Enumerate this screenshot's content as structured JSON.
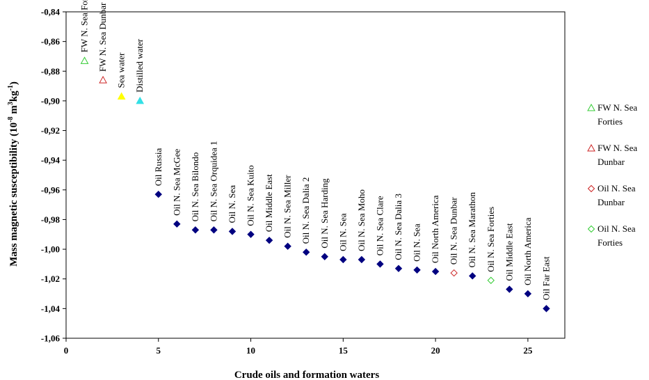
{
  "chart_data": {
    "type": "scatter",
    "title": "",
    "xlabel": "Crude oils and formation waters",
    "ylabel": "Mass magnetic susceptibility",
    "ylabel_unit": "(10",
    "ylabel_unit_sup1": "-8",
    "ylabel_unit_mid": " m",
    "ylabel_unit_sup2": "3",
    "ylabel_unit_mid2": "kg",
    "ylabel_unit_sup3": "-1",
    "ylabel_unit_end": ")",
    "xlim": [
      0,
      27
    ],
    "ylim": [
      -1.06,
      -0.84
    ],
    "x_ticks": [
      0,
      5,
      10,
      15,
      20,
      25
    ],
    "y_ticks": [
      -0.84,
      -0.86,
      -0.88,
      -0.9,
      -0.92,
      -0.94,
      -0.96,
      -0.98,
      -1.0,
      -1.02,
      -1.04,
      -1.06
    ],
    "y_tick_labels": [
      "-0,84",
      "-0,86",
      "-0,88",
      "-0,90",
      "-0,92",
      "-0,94",
      "-0,96",
      "-0,98",
      "-1,00",
      "-1,02",
      "-1,04",
      "-1,06"
    ],
    "grid": false,
    "legend_position": "right",
    "points": [
      {
        "x": 1,
        "y": -0.873,
        "label": "FW N. Sea Forties",
        "marker": "triangle-open",
        "color": "#33cc33"
      },
      {
        "x": 2,
        "y": -0.886,
        "label": "FW N. Sea Dunbar",
        "marker": "triangle-open",
        "color": "#cc2222"
      },
      {
        "x": 3,
        "y": -0.897,
        "label": "Sea water",
        "marker": "triangle",
        "color": "#ffff00"
      },
      {
        "x": 4,
        "y": -0.9,
        "label": "Distilled water",
        "marker": "triangle",
        "color": "#33e0e6"
      },
      {
        "x": 5,
        "y": -0.963,
        "label": "Oil Russia",
        "marker": "diamond",
        "color": "#000080"
      },
      {
        "x": 6,
        "y": -0.983,
        "label": "Oil N. Sea McGee",
        "marker": "diamond",
        "color": "#000080"
      },
      {
        "x": 7,
        "y": -0.987,
        "label": "Oil N. Sea Bilondo",
        "marker": "diamond",
        "color": "#000080"
      },
      {
        "x": 8,
        "y": -0.987,
        "label": "Oil N. Sea Orquidea 1",
        "marker": "diamond",
        "color": "#000080"
      },
      {
        "x": 9,
        "y": -0.988,
        "label": "Oil N. Sea",
        "marker": "diamond",
        "color": "#000080"
      },
      {
        "x": 10,
        "y": -0.99,
        "label": "Oil N. Sea Kuito",
        "marker": "diamond",
        "color": "#000080"
      },
      {
        "x": 11,
        "y": -0.994,
        "label": "Oil Middle East",
        "marker": "diamond",
        "color": "#000080"
      },
      {
        "x": 12,
        "y": -0.998,
        "label": "Oil N. Sea Miller",
        "marker": "diamond",
        "color": "#000080"
      },
      {
        "x": 13,
        "y": -1.002,
        "label": "Oil N. Sea Dalia 2",
        "marker": "diamond",
        "color": "#000080"
      },
      {
        "x": 14,
        "y": -1.005,
        "label": "Oil N. Sea Harding",
        "marker": "diamond",
        "color": "#000080"
      },
      {
        "x": 15,
        "y": -1.007,
        "label": "Oil N. Sea",
        "marker": "diamond",
        "color": "#000080"
      },
      {
        "x": 16,
        "y": -1.007,
        "label": "Oil N. Sea Moho",
        "marker": "diamond",
        "color": "#000080"
      },
      {
        "x": 17,
        "y": -1.01,
        "label": "Oil N. Sea Clare",
        "marker": "diamond",
        "color": "#000080"
      },
      {
        "x": 18,
        "y": -1.013,
        "label": "Oil N. Sea Dalia 3",
        "marker": "diamond",
        "color": "#000080"
      },
      {
        "x": 19,
        "y": -1.014,
        "label": "Oil N. Sea",
        "marker": "diamond",
        "color": "#000080"
      },
      {
        "x": 20,
        "y": -1.015,
        "label": "Oil North America",
        "marker": "diamond",
        "color": "#000080"
      },
      {
        "x": 21,
        "y": -1.016,
        "label": "Oil N. Sea Dunbar",
        "marker": "diamond-open",
        "color": "#cc2222"
      },
      {
        "x": 22,
        "y": -1.018,
        "label": "Oil N. Sea Marathon",
        "marker": "diamond",
        "color": "#000080"
      },
      {
        "x": 23,
        "y": -1.021,
        "label": "Oil N. Sea Forties",
        "marker": "diamond-open",
        "color": "#33cc33"
      },
      {
        "x": 24,
        "y": -1.027,
        "label": "Oil Middle East",
        "marker": "diamond",
        "color": "#000080"
      },
      {
        "x": 25,
        "y": -1.03,
        "label": "Oil North America",
        "marker": "diamond",
        "color": "#000080"
      },
      {
        "x": 26,
        "y": -1.04,
        "label": "Oil Far East",
        "marker": "diamond",
        "color": "#000080"
      }
    ],
    "legend": [
      {
        "line1": "FW N. Sea",
        "line2": "Forties",
        "marker": "triangle-open",
        "color": "#33cc33"
      },
      {
        "line1": "FW N. Sea",
        "line2": "Dunbar",
        "marker": "triangle-open",
        "color": "#cc2222"
      },
      {
        "line1": "Oil N. Sea",
        "line2": "Dunbar",
        "marker": "diamond-open",
        "color": "#cc2222"
      },
      {
        "line1": "Oil N. Sea",
        "line2": "Forties",
        "marker": "diamond-open",
        "color": "#33cc33"
      }
    ]
  }
}
